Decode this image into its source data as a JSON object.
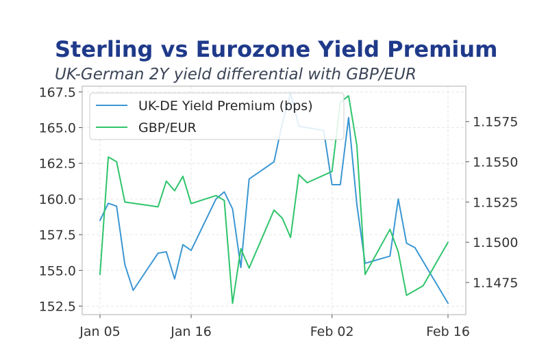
{
  "chart_data": {
    "type": "line",
    "title": "Sterling vs Eurozone Yield Premium",
    "subtitle": "UK-German 2Y yield differential with GBP/EUR",
    "xlabel": "",
    "ylabel_left": "",
    "ylabel_right": "",
    "grid": true,
    "legend_position": "top-left",
    "x_ticks": [
      "Jan 05",
      "Jan 16",
      "Feb 02",
      "Feb 16"
    ],
    "x_tick_days": [
      0,
      11,
      28,
      42
    ],
    "ylim_left": [
      151.9,
      167.9
    ],
    "ylim_right": [
      1.1455,
      1.1597
    ],
    "left_ticks": [
      "152.5",
      "155.0",
      "157.5",
      "160.0",
      "162.5",
      "165.0",
      "167.5"
    ],
    "right_ticks": [
      "1.1475",
      "1.1500",
      "1.1525",
      "1.1550",
      "1.1575"
    ],
    "series": [
      {
        "name": "UK-DE Yield Premium (bps)",
        "axis": "left",
        "color": "#3a96d2",
        "x": [
          0,
          1,
          2,
          3,
          4,
          7,
          8,
          9,
          10,
          11,
          14,
          15,
          16,
          17,
          18,
          21,
          22,
          23,
          24,
          27,
          28,
          29,
          30,
          31,
          32,
          35,
          36,
          37,
          38,
          42
        ],
        "y": [
          158.5,
          159.7,
          159.5,
          155.4,
          153.6,
          156.2,
          156.3,
          154.4,
          156.8,
          156.4,
          160.0,
          160.5,
          159.3,
          155.2,
          161.4,
          162.6,
          165.3,
          167.4,
          165.1,
          164.8,
          161.0,
          161.0,
          165.7,
          159.6,
          155.5,
          156.0,
          160.0,
          156.9,
          156.6,
          152.7
        ]
      },
      {
        "name": "GBP/EUR",
        "axis": "right",
        "color": "#2ec46a",
        "x": [
          0,
          1,
          2,
          3,
          7,
          8,
          9,
          10,
          11,
          14,
          15,
          16,
          17,
          18,
          21,
          22,
          23,
          24,
          25,
          28,
          29,
          30,
          31,
          32,
          35,
          36,
          37,
          38,
          39,
          42
        ],
        "y": [
          1.148,
          1.1553,
          1.155,
          1.1525,
          1.1522,
          1.1538,
          1.1532,
          1.1541,
          1.1524,
          1.1529,
          1.1526,
          1.1462,
          1.1496,
          1.1484,
          1.152,
          1.1515,
          1.1503,
          1.1542,
          1.1537,
          1.1544,
          1.1587,
          1.1591,
          1.156,
          1.148,
          1.1508,
          1.1494,
          1.1467,
          1.147,
          1.1473,
          1.15
        ]
      }
    ]
  }
}
